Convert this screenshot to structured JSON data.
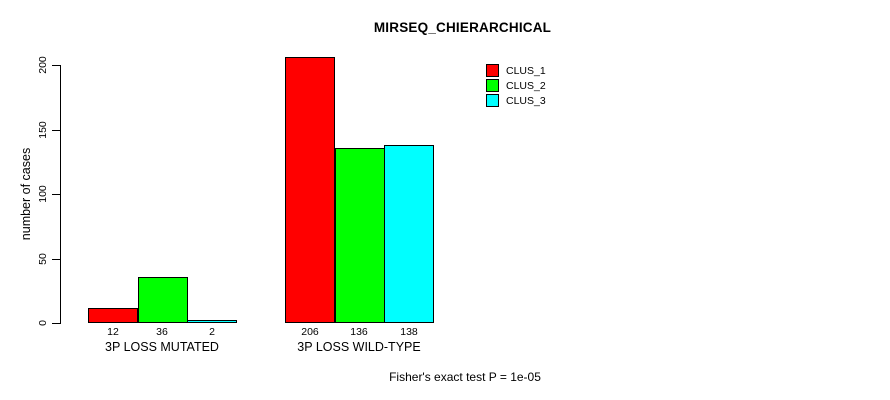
{
  "chart_data": {
    "type": "bar",
    "title": "MIRSEQ_CHIERARCHICAL",
    "ylabel": "number of cases",
    "xlabel": "",
    "categories": [
      "3P LOSS MUTATED",
      "3P LOSS WILD-TYPE"
    ],
    "series": [
      {
        "name": "CLUS_1",
        "color": "#FF0000",
        "values": [
          12,
          206
        ]
      },
      {
        "name": "CLUS_2",
        "color": "#00FF00",
        "values": [
          36,
          136
        ]
      },
      {
        "name": "CLUS_3",
        "color": "#00FFFF",
        "values": [
          2,
          138
        ]
      }
    ],
    "yticks": [
      0,
      50,
      100,
      150,
      200
    ],
    "ylim": [
      0,
      206
    ],
    "bar_value_labels": [
      [
        "12",
        "36",
        "2"
      ],
      [
        "206",
        "136",
        "138"
      ]
    ],
    "grid": false,
    "legend_position": "top-right",
    "annotation": "Fisher's exact test P = 1e-05"
  }
}
